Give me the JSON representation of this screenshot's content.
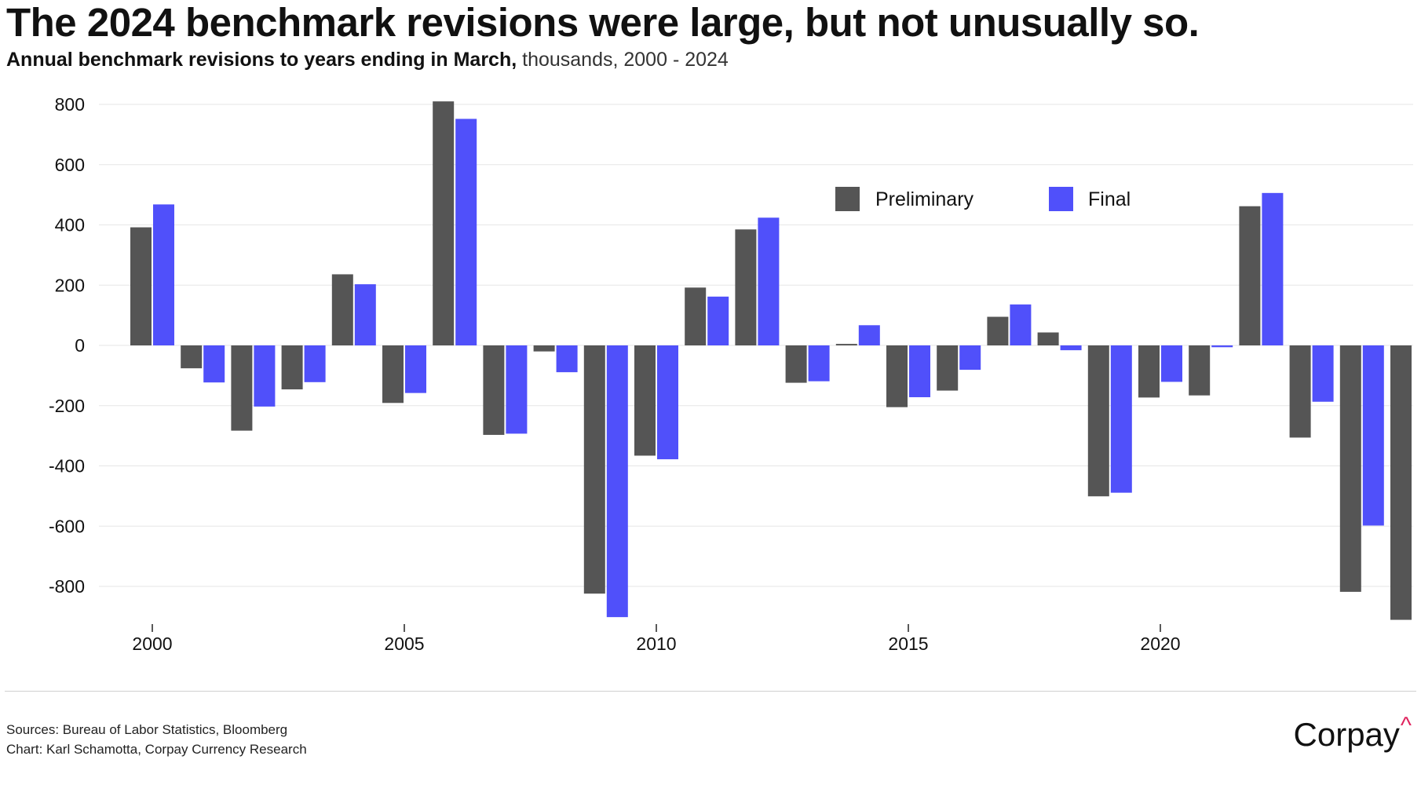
{
  "title": "The 2024 benchmark revisions were large, but not unusually so.",
  "subtitle": {
    "bold": "Annual benchmark revisions to years ending in March,",
    "light": " thousands, 2000 - 2024"
  },
  "footer": {
    "sources": "Sources: Bureau of Labor Statistics, Bloomberg",
    "chart": "Chart: Karl Schamotta, Corpay Currency Research"
  },
  "logo": {
    "text": "Corpay",
    "mark": "^"
  },
  "colors": {
    "preliminary": "#555555",
    "final": "#5050fa",
    "grid": "#e6e6e6"
  },
  "chart_data": {
    "type": "bar",
    "title": "The 2024 benchmark revisions were large, but not unusually so.",
    "subtitle": "Annual benchmark revisions to years ending in March, thousands, 2000 - 2024",
    "x": [
      2000,
      2001,
      2002,
      2003,
      2004,
      2005,
      2006,
      2007,
      2008,
      2009,
      2010,
      2011,
      2012,
      2013,
      2014,
      2015,
      2016,
      2017,
      2018,
      2019,
      2020,
      2021,
      2022,
      2023,
      2024
    ],
    "series": [
      {
        "name": "Preliminary",
        "color": "#555555",
        "values": [
          392,
          -76,
          -283,
          -146,
          236,
          -191,
          810,
          -297,
          -20,
          -824,
          -366,
          192,
          385,
          -124,
          5,
          -205,
          -150,
          95,
          43,
          -501,
          -173,
          -166,
          462,
          -306,
          -818
        ]
      },
      {
        "name": "Final",
        "color": "#5050fa",
        "values": [
          468,
          -123,
          -203,
          -122,
          203,
          -158,
          752,
          -293,
          -89,
          -902,
          -378,
          162,
          424,
          -119,
          67,
          -172,
          -81,
          136,
          -16,
          -489,
          -121,
          -6,
          506,
          -187,
          -598
        ]
      }
    ],
    "extra_bar": {
      "series": "Preliminary",
      "x": 2025,
      "value": -911
    },
    "ylim": [
      -900,
      800
    ],
    "yticks": [
      800,
      600,
      400,
      200,
      0,
      -200,
      -400,
      -600,
      -800
    ],
    "xticks": [
      2000,
      2005,
      2010,
      2015,
      2020
    ],
    "xlabel": "",
    "ylabel": "",
    "grid": true,
    "legend_position": "top-right"
  }
}
